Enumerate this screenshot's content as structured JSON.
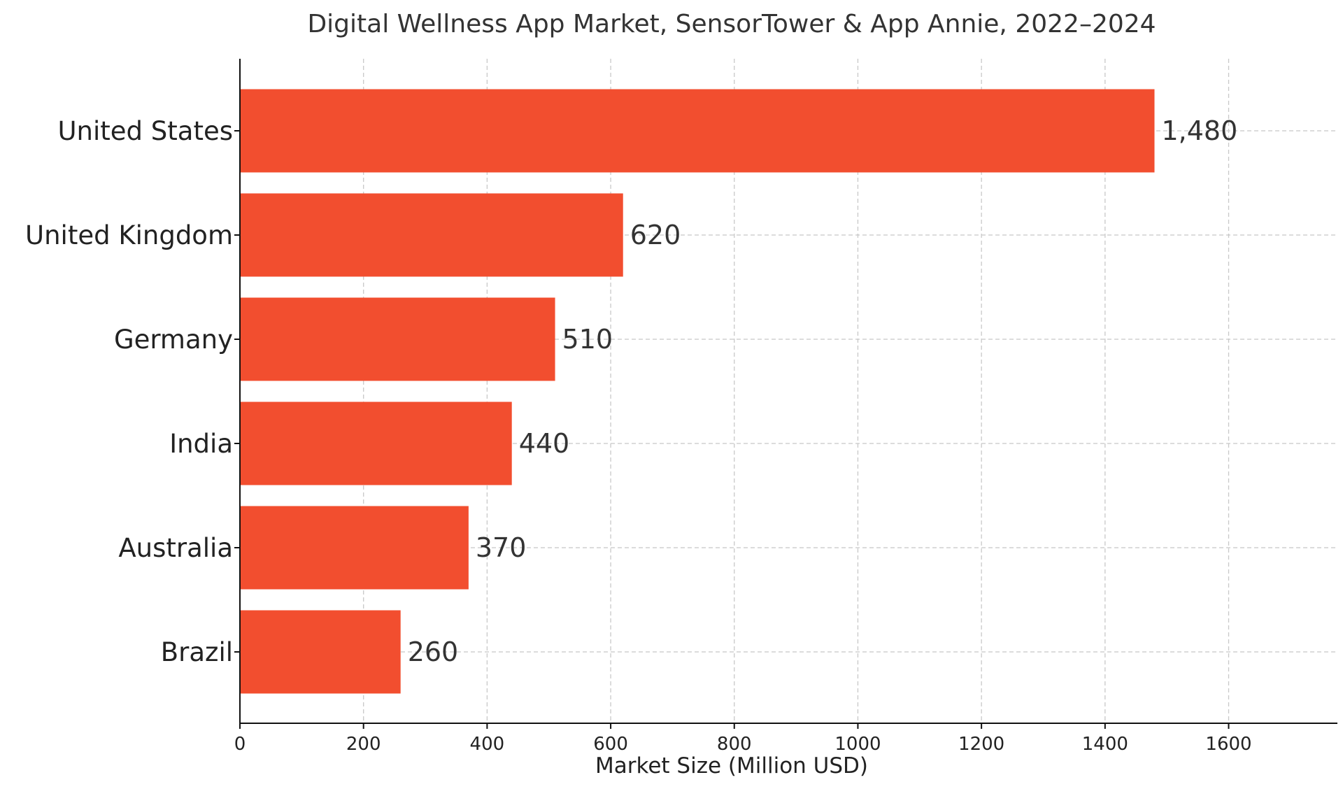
{
  "chart_data": {
    "type": "bar",
    "orientation": "horizontal",
    "title": "Digital Wellness App Market, SensorTower & App Annie, 2022–2024",
    "xlabel": "Market Size (Million USD)",
    "ylabel": "",
    "categories": [
      "United States",
      "United Kingdom",
      "Germany",
      "India",
      "Australia",
      "Brazil"
    ],
    "values": [
      1480,
      620,
      510,
      440,
      370,
      260
    ],
    "value_labels": [
      "1,480",
      "620",
      "510",
      "440",
      "370",
      "260"
    ],
    "xlim": [
      0,
      1776
    ],
    "x_ticks": [
      0,
      200,
      400,
      600,
      800,
      1000,
      1200,
      1400,
      1600
    ],
    "x_tick_labels": [
      "0",
      "200",
      "400",
      "600",
      "800",
      "1000",
      "1200",
      "1400",
      "1600"
    ],
    "grid": true,
    "bar_color": "#f24e2f"
  }
}
